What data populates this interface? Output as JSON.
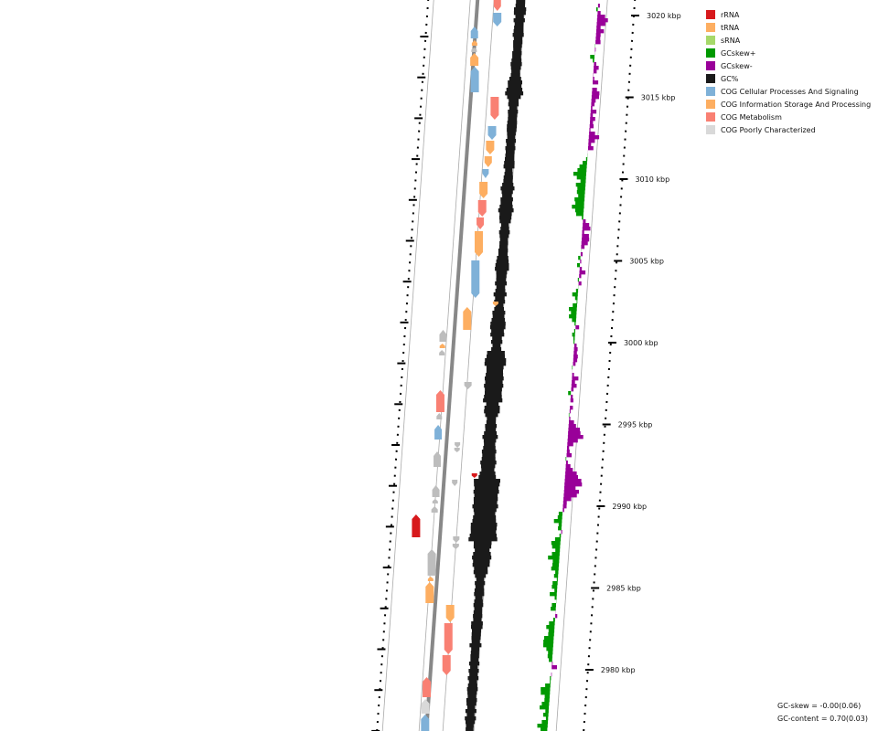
{
  "legend": [
    {
      "label": "rRNA",
      "color": "#d7191c"
    },
    {
      "label": "tRNA",
      "color": "#fdae61"
    },
    {
      "label": "sRNA",
      "color": "#a6d96a"
    },
    {
      "label": "GCskew+",
      "color": "#009900"
    },
    {
      "label": "GCskew-",
      "color": "#990099"
    },
    {
      "label": "GC%",
      "color": "#1a1a1a"
    },
    {
      "label": "COG Cellular Processes And Signaling",
      "color": "#7fb1d8"
    },
    {
      "label": "COG Information Storage And Processing",
      "color": "#fdae61"
    },
    {
      "label": "COG Metabolism",
      "color": "#f98073"
    },
    {
      "label": "COG Poorly Characterized",
      "color": "#d9d9d9"
    }
  ],
  "ticks": {
    "labels": [
      "3020 kbp",
      "3015 kbp",
      "3010 kbp",
      "3005 kbp",
      "3000 kbp",
      "2995 kbp",
      "2990 kbp",
      "2985 kbp",
      "2980 kbp"
    ],
    "kbp": [
      3020,
      3015,
      3010,
      3005,
      3000,
      2995,
      2990,
      2985,
      2980
    ]
  },
  "stats": {
    "gc_skew": "GC-skew = -0.00(0.06)",
    "gc_content": "GC-content = 0.70(0.03)"
  },
  "colors": {
    "gc_content": "#1a1a1a",
    "skew_pos": "#009900",
    "skew_neg": "#990099",
    "backbone": "#888888",
    "ring_line": "#aaaaaa",
    "rRNA": "#d7191c",
    "tRNA": "#fdae61",
    "cog_cellular": "#7fb1d8",
    "cog_information": "#fdae61",
    "cog_metabolism": "#f98073",
    "cog_poorly": "#d9d9d9",
    "no_cog": "#bdbdbd"
  }
}
